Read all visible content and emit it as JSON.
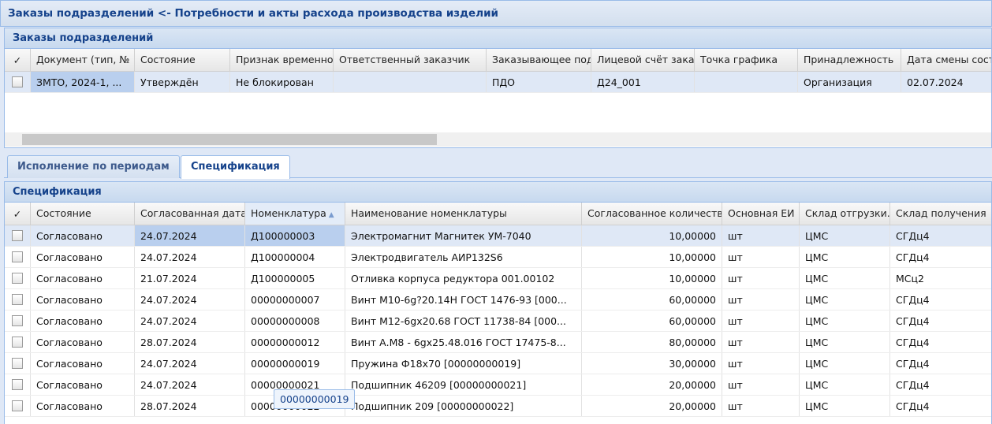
{
  "window": {
    "title": "Заказы подразделений <- Потребности и акты расхода производства изделий"
  },
  "orders": {
    "title": "Заказы подразделений",
    "columns": [
      "✓",
      "Документ (тип, №",
      "Состояние",
      "Признак временно",
      "Ответственный заказчик",
      "Заказывающее под",
      "Лицевой счёт зака",
      "Точка графика",
      "Принадлежность",
      "Дата смены сост"
    ],
    "rows": [
      [
        "ЗМТО, 2024-1, ...",
        "Утверждён",
        "Не блокирован",
        "",
        "ПДО",
        "Д24_001",
        "",
        "Организация",
        "02.07.2024"
      ]
    ]
  },
  "tabs": [
    {
      "label": "Исполнение по периодам",
      "active": false
    },
    {
      "label": "Спецификация",
      "active": true
    }
  ],
  "spec": {
    "title": "Спецификация",
    "sort_column": "Номенклатура",
    "sort_dir": "asc",
    "columns": [
      "✓",
      "Состояние",
      "Согласованная дата",
      "Номенклатура",
      "Наименование номенклатуры",
      "Согласованное количество",
      "Основная ЕИ",
      "Склад отгрузки.",
      "Склад получения"
    ],
    "rows": [
      [
        "Согласовано",
        "24.07.2024",
        "Д100000003",
        "Электромагнит Магнитек УМ-7040",
        "10,00000",
        "шт",
        "ЦМС",
        "СГДц4"
      ],
      [
        "Согласовано",
        "24.07.2024",
        "Д100000004",
        "Электродвигатель АИР132S6",
        "10,00000",
        "шт",
        "ЦМС",
        "СГДц4"
      ],
      [
        "Согласовано",
        "21.07.2024",
        "Д100000005",
        "Отливка корпуса редуктора 001.00102",
        "10,00000",
        "шт",
        "ЦМС",
        "МСц2"
      ],
      [
        "Согласовано",
        "24.07.2024",
        "00000000007",
        "Винт М10-6g?20.14Н ГОСТ 1476-93 [000...",
        "60,00000",
        "шт",
        "ЦМС",
        "СГДц4"
      ],
      [
        "Согласовано",
        "24.07.2024",
        "00000000008",
        "Винт М12-6gx20.68 ГОСТ 11738-84 [000...",
        "60,00000",
        "шт",
        "ЦМС",
        "СГДц4"
      ],
      [
        "Согласовано",
        "28.07.2024",
        "00000000012",
        "Винт А.М8 - 6gx25.48.016 ГОСТ 17475-8...",
        "80,00000",
        "шт",
        "ЦМС",
        "СГДц4"
      ],
      [
        "Согласовано",
        "24.07.2024",
        "00000000019",
        "Пружина Ф18х70 [00000000019]",
        "30,00000",
        "шт",
        "ЦМС",
        "СГДц4"
      ],
      [
        "Согласовано",
        "24.07.2024",
        "00000000021",
        "Подшипник 46209 [00000000021]",
        "20,00000",
        "шт",
        "ЦМС",
        "СГДц4"
      ],
      [
        "Согласовано",
        "28.07.2024",
        "00000000022",
        "Подшипник 209 [00000000022]",
        "20,00000",
        "шт",
        "ЦМС",
        "СГДц4"
      ]
    ]
  },
  "tooltip": {
    "text": "00000000019"
  },
  "colors": {
    "accent": "#15428b",
    "border": "#99bbe8",
    "selected_row": "#dfe8f6",
    "selected_cell": "#b9cfee"
  }
}
